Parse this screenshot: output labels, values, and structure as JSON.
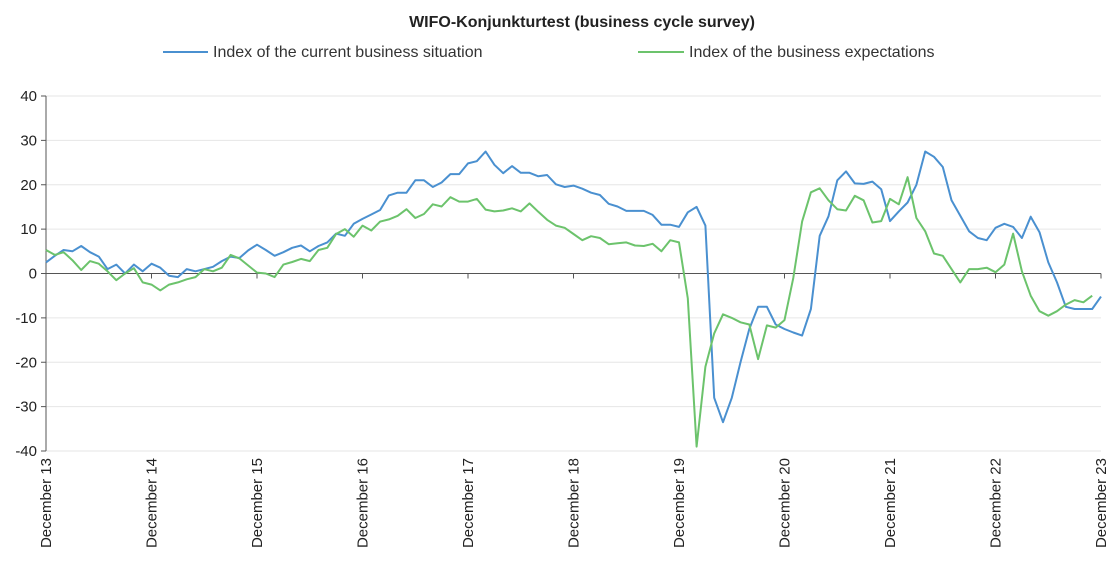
{
  "chart_data": {
    "type": "line",
    "title": "WIFO-Konjunkturtest (business cycle survey)",
    "xlabel": "",
    "ylabel": "",
    "ylim": [
      -40,
      40
    ],
    "yticks": [
      40,
      30,
      20,
      10,
      0,
      -10,
      -20,
      -30,
      -40
    ],
    "x_tick_labels": [
      "December 13",
      "December 14",
      "December 15",
      "December 16",
      "December 17",
      "December 18",
      "December 19",
      "December 20",
      "December 21",
      "December 22",
      "December 23"
    ],
    "x_start": "2013-12",
    "x_end": "2023-12",
    "grid": true,
    "legend_position": "top",
    "series": [
      {
        "name": "Index of the current business situation",
        "color": "#4a90d0",
        "values": [
          2.5,
          4,
          5.3,
          5,
          6.2,
          4.8,
          3.8,
          1,
          2,
          0,
          2,
          0.5,
          2.2,
          1.3,
          -0.5,
          -0.8,
          1,
          0.5,
          1,
          1.5,
          2.8,
          3.8,
          3.5,
          5.2,
          6.5,
          5.3,
          4,
          4.8,
          5.8,
          6.3,
          5,
          6.2,
          7,
          9,
          8.5,
          11.2,
          12.3,
          13.3,
          14.3,
          17.6,
          18.2,
          18.2,
          21,
          21,
          19.5,
          20.5,
          22.4,
          22.4,
          24.8,
          25.3,
          27.5,
          24.5,
          22.6,
          24.2,
          22.7,
          22.7,
          21.9,
          22.2,
          20.1,
          19.5,
          19.8,
          19.1,
          18.2,
          17.7,
          15.7,
          15.1,
          14.1,
          14.1,
          14.1,
          13.2,
          11,
          11,
          10.5,
          13.8,
          15,
          10.8,
          -28,
          -33.5,
          -28,
          -20,
          -12.5,
          -7.5,
          -7.5,
          -11.5,
          -12.5,
          -13.3,
          -14,
          -8,
          8.5,
          12.9,
          21,
          23,
          20.3,
          20.2,
          20.7,
          19,
          11.8,
          14,
          16,
          20,
          27.5,
          26.3,
          24,
          16.5,
          13,
          9.5,
          8,
          7.5,
          10.3,
          11.2,
          10.5,
          8,
          12.8,
          9.3,
          2.5,
          -2,
          -7.5,
          -8,
          -8,
          -8,
          -5.2
        ]
      },
      {
        "name": "Index of the business expectations",
        "color": "#6cc36c",
        "values": [
          5.3,
          4.2,
          4.8,
          3,
          0.8,
          2.8,
          2.2,
          0.5,
          -1.5,
          0,
          1.2,
          -2,
          -2.5,
          -3.8,
          -2.5,
          -2,
          -1.3,
          -0.8,
          1,
          0.5,
          1.3,
          4.2,
          3.4,
          1.8,
          0.2,
          0,
          -0.8,
          2,
          2.6,
          3.3,
          2.8,
          5.3,
          5.8,
          8.9,
          10,
          8.3,
          10.8,
          9.7,
          11.7,
          12.2,
          13,
          14.5,
          12.5,
          13.4,
          15.6,
          15.1,
          17.2,
          16.2,
          16.2,
          16.8,
          14.4,
          14,
          14.2,
          14.7,
          14,
          15.8,
          13.9,
          12.1,
          10.8,
          10.3,
          8.9,
          7.5,
          8.4,
          8,
          6.6,
          6.8,
          7,
          6.3,
          6.2,
          6.7,
          5,
          7.5,
          7,
          -5.6,
          -39,
          -21,
          -13.5,
          -9.2,
          -10,
          -11,
          -11.5,
          -19.3,
          -11.7,
          -12.2,
          -10.5,
          -1,
          11.7,
          18.3,
          19.2,
          16.5,
          14.5,
          14.2,
          17.5,
          16.5,
          11.5,
          11.8,
          16.8,
          15.6,
          21.7,
          12.5,
          9.5,
          4.5,
          4,
          1,
          -2,
          1,
          1,
          1.3,
          0.3,
          2,
          9,
          0.5,
          -5,
          -8.5,
          -9.5,
          -8.5,
          -7,
          -6,
          -6.5,
          -5
        ]
      }
    ]
  }
}
